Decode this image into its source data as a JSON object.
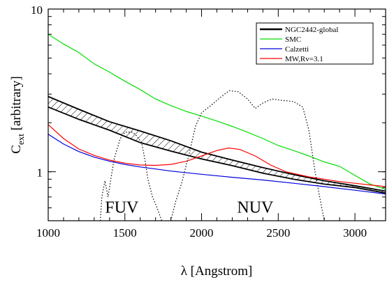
{
  "chart_data": {
    "type": "line",
    "xlabel_symbol": "λ",
    "xlabel_text": "[Angstrom]",
    "ylabel_main": "C",
    "ylabel_sub": "ext",
    "ylabel_rest": "[arbitrary]",
    "xlim": [
      1000,
      3200
    ],
    "ylim": [
      0.5,
      10
    ],
    "yscale": "log",
    "grid": false,
    "legend_position": "top-right",
    "x_ticks": [
      1000,
      1500,
      2000,
      2500,
      3000
    ],
    "x_tick_labels": [
      "1000",
      "1500",
      "2000",
      "2500",
      "3000"
    ],
    "y_ticks": [
      1,
      10
    ],
    "y_tick_labels": [
      "1",
      "10"
    ],
    "series": [
      {
        "name": "NGC2442-global",
        "color": "#000000",
        "style": "band",
        "upper": [
          [
            1000,
            2.9
          ],
          [
            1200,
            2.42
          ],
          [
            1400,
            2.03
          ],
          [
            1600,
            1.78
          ],
          [
            1800,
            1.55
          ],
          [
            2000,
            1.32
          ],
          [
            2200,
            1.18
          ],
          [
            2400,
            1.06
          ],
          [
            2600,
            0.96
          ],
          [
            2800,
            0.88
          ],
          [
            3000,
            0.82
          ],
          [
            3200,
            0.76
          ]
        ],
        "lower": [
          [
            1000,
            2.5
          ],
          [
            1200,
            2.1
          ],
          [
            1400,
            1.8
          ],
          [
            1600,
            1.51
          ],
          [
            1800,
            1.34
          ],
          [
            2000,
            1.2
          ],
          [
            2200,
            1.09
          ],
          [
            2400,
            0.98
          ],
          [
            2600,
            0.9
          ],
          [
            2800,
            0.84
          ],
          [
            3000,
            0.8
          ],
          [
            3200,
            0.74
          ]
        ]
      },
      {
        "name": "SMC",
        "color": "#00dd00",
        "style": "line",
        "points": [
          [
            1000,
            7.0
          ],
          [
            1100,
            6.1
          ],
          [
            1200,
            5.4
          ],
          [
            1300,
            4.6
          ],
          [
            1400,
            4.1
          ],
          [
            1500,
            3.6
          ],
          [
            1600,
            3.2
          ],
          [
            1700,
            2.8
          ],
          [
            1800,
            2.55
          ],
          [
            1900,
            2.35
          ],
          [
            2000,
            2.2
          ],
          [
            2100,
            2.05
          ],
          [
            2200,
            1.9
          ],
          [
            2300,
            1.75
          ],
          [
            2400,
            1.6
          ],
          [
            2500,
            1.45
          ],
          [
            2600,
            1.35
          ],
          [
            2700,
            1.25
          ],
          [
            2800,
            1.15
          ],
          [
            2900,
            1.08
          ],
          [
            3000,
            0.95
          ],
          [
            3100,
            0.84
          ],
          [
            3200,
            0.78
          ]
        ]
      },
      {
        "name": "Calzetti",
        "color": "#0000dd",
        "style": "line",
        "points": [
          [
            1000,
            1.7
          ],
          [
            1100,
            1.48
          ],
          [
            1200,
            1.33
          ],
          [
            1300,
            1.23
          ],
          [
            1400,
            1.16
          ],
          [
            1500,
            1.11
          ],
          [
            1600,
            1.07
          ],
          [
            1700,
            1.04
          ],
          [
            1800,
            1.01
          ],
          [
            2000,
            0.965
          ],
          [
            2200,
            0.925
          ],
          [
            2400,
            0.89
          ],
          [
            2600,
            0.85
          ],
          [
            2800,
            0.81
          ],
          [
            3000,
            0.77
          ],
          [
            3200,
            0.73
          ]
        ]
      },
      {
        "name": "MW,Rv=3.1",
        "color": "#ff0000",
        "style": "line",
        "points": [
          [
            1000,
            1.95
          ],
          [
            1100,
            1.6
          ],
          [
            1200,
            1.38
          ],
          [
            1300,
            1.26
          ],
          [
            1400,
            1.18
          ],
          [
            1500,
            1.13
          ],
          [
            1600,
            1.1
          ],
          [
            1700,
            1.095
          ],
          [
            1800,
            1.11
          ],
          [
            1900,
            1.16
          ],
          [
            2000,
            1.25
          ],
          [
            2100,
            1.35
          ],
          [
            2175,
            1.4
          ],
          [
            2250,
            1.37
          ],
          [
            2350,
            1.25
          ],
          [
            2450,
            1.1
          ],
          [
            2550,
            1.0
          ],
          [
            2700,
            0.93
          ],
          [
            2900,
            0.87
          ],
          [
            3100,
            0.83
          ],
          [
            3200,
            0.81
          ]
        ]
      },
      {
        "name": "FUV filter",
        "color": "#000000",
        "style": "dotted",
        "points": [
          [
            1340,
            0.5
          ],
          [
            1350,
            0.7
          ],
          [
            1370,
            0.88
          ],
          [
            1390,
            0.7
          ],
          [
            1430,
            1.2
          ],
          [
            1470,
            1.6
          ],
          [
            1500,
            1.75
          ],
          [
            1550,
            1.75
          ],
          [
            1580,
            1.65
          ],
          [
            1610,
            1.5
          ],
          [
            1630,
            1.2
          ],
          [
            1650,
            0.9
          ],
          [
            1680,
            0.7
          ],
          [
            1710,
            0.6
          ],
          [
            1740,
            0.5
          ]
        ]
      },
      {
        "name": "NUV filter",
        "color": "#000000",
        "style": "dotted",
        "points": [
          [
            1800,
            0.5
          ],
          [
            1830,
            0.65
          ],
          [
            1870,
            0.85
          ],
          [
            1920,
            1.3
          ],
          [
            1960,
            1.9
          ],
          [
            2000,
            2.3
          ],
          [
            2060,
            2.55
          ],
          [
            2120,
            2.85
          ],
          [
            2180,
            3.15
          ],
          [
            2240,
            3.1
          ],
          [
            2300,
            2.8
          ],
          [
            2350,
            2.45
          ],
          [
            2400,
            2.65
          ],
          [
            2460,
            2.8
          ],
          [
            2520,
            2.75
          ],
          [
            2600,
            2.7
          ],
          [
            2660,
            2.5
          ],
          [
            2700,
            1.8
          ],
          [
            2740,
            1.0
          ],
          [
            2770,
            0.7
          ],
          [
            2800,
            0.5
          ]
        ]
      }
    ],
    "annotations": [
      {
        "text": "FUV",
        "x": 1480,
        "y": 0.56
      },
      {
        "text": "NUV",
        "x": 2350,
        "y": 0.56
      }
    ]
  }
}
